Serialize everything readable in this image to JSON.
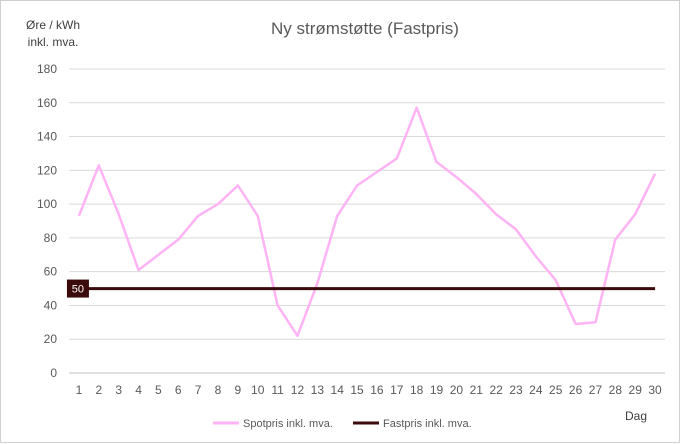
{
  "chart_data": {
    "type": "line",
    "title": "Ny strømstøtte (Fastpris)",
    "ylabel_line1": "Øre / kWh",
    "ylabel_line2": "inkl. mva.",
    "xlabel": "Dag",
    "ylim": [
      0,
      180
    ],
    "ytick_step": 20,
    "grid": "horizontal",
    "legend_position": "bottom",
    "x": [
      1,
      2,
      3,
      4,
      5,
      6,
      7,
      8,
      9,
      10,
      11,
      12,
      13,
      14,
      15,
      16,
      17,
      18,
      19,
      20,
      21,
      22,
      23,
      24,
      25,
      26,
      27,
      28,
      29,
      30
    ],
    "series": [
      {
        "name": "Spotpris inkl. mva.",
        "color": "#ffb3f5",
        "values": [
          93,
          123,
          94,
          61,
          70,
          79,
          93,
          100,
          111,
          93,
          40,
          22,
          53,
          93,
          111,
          119,
          127,
          157,
          125,
          116,
          106,
          94,
          85,
          69,
          55,
          29,
          30,
          79,
          94,
          118
        ]
      },
      {
        "name": "Fastpris inkl. mva.",
        "color": "#3b0a0a",
        "values": [
          50,
          50,
          50,
          50,
          50,
          50,
          50,
          50,
          50,
          50,
          50,
          50,
          50,
          50,
          50,
          50,
          50,
          50,
          50,
          50,
          50,
          50,
          50,
          50,
          50,
          50,
          50,
          50,
          50,
          50
        ]
      }
    ],
    "annotation": {
      "label": "50",
      "value": 50,
      "background": "#3b0a0a",
      "color": "#ffffff"
    }
  }
}
